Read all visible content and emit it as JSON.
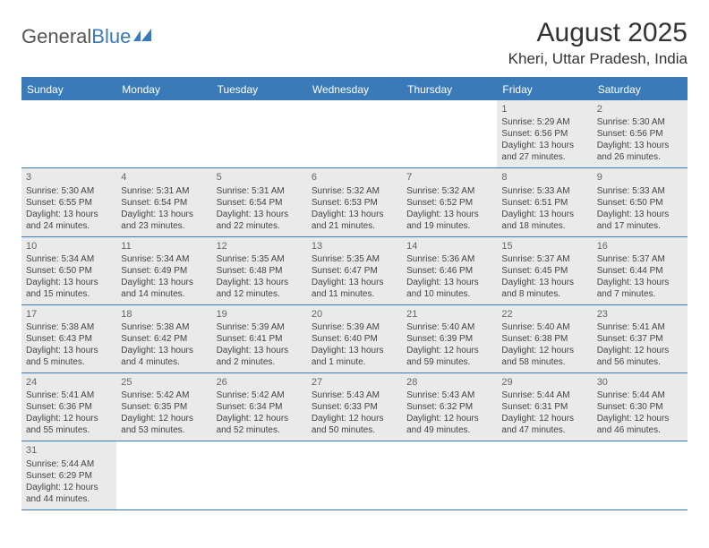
{
  "logo": {
    "text1": "General",
    "text2": "Blue"
  },
  "title": "August 2025",
  "subtitle": "Kheri, Uttar Pradesh, India",
  "colors": {
    "header_bg": "#3a7ab8",
    "header_text": "#ffffff",
    "cell_bg": "#eaeaea",
    "border": "#3a7ab8",
    "text": "#444444",
    "daynum": "#666666"
  },
  "day_headers": [
    "Sunday",
    "Monday",
    "Tuesday",
    "Wednesday",
    "Thursday",
    "Friday",
    "Saturday"
  ],
  "weeks": [
    [
      {
        "num": "",
        "sunrise": "",
        "sunset": "",
        "daylight": ""
      },
      {
        "num": "",
        "sunrise": "",
        "sunset": "",
        "daylight": ""
      },
      {
        "num": "",
        "sunrise": "",
        "sunset": "",
        "daylight": ""
      },
      {
        "num": "",
        "sunrise": "",
        "sunset": "",
        "daylight": ""
      },
      {
        "num": "",
        "sunrise": "",
        "sunset": "",
        "daylight": ""
      },
      {
        "num": "1",
        "sunrise": "Sunrise: 5:29 AM",
        "sunset": "Sunset: 6:56 PM",
        "daylight": "Daylight: 13 hours and 27 minutes."
      },
      {
        "num": "2",
        "sunrise": "Sunrise: 5:30 AM",
        "sunset": "Sunset: 6:56 PM",
        "daylight": "Daylight: 13 hours and 26 minutes."
      }
    ],
    [
      {
        "num": "3",
        "sunrise": "Sunrise: 5:30 AM",
        "sunset": "Sunset: 6:55 PM",
        "daylight": "Daylight: 13 hours and 24 minutes."
      },
      {
        "num": "4",
        "sunrise": "Sunrise: 5:31 AM",
        "sunset": "Sunset: 6:54 PM",
        "daylight": "Daylight: 13 hours and 23 minutes."
      },
      {
        "num": "5",
        "sunrise": "Sunrise: 5:31 AM",
        "sunset": "Sunset: 6:54 PM",
        "daylight": "Daylight: 13 hours and 22 minutes."
      },
      {
        "num": "6",
        "sunrise": "Sunrise: 5:32 AM",
        "sunset": "Sunset: 6:53 PM",
        "daylight": "Daylight: 13 hours and 21 minutes."
      },
      {
        "num": "7",
        "sunrise": "Sunrise: 5:32 AM",
        "sunset": "Sunset: 6:52 PM",
        "daylight": "Daylight: 13 hours and 19 minutes."
      },
      {
        "num": "8",
        "sunrise": "Sunrise: 5:33 AM",
        "sunset": "Sunset: 6:51 PM",
        "daylight": "Daylight: 13 hours and 18 minutes."
      },
      {
        "num": "9",
        "sunrise": "Sunrise: 5:33 AM",
        "sunset": "Sunset: 6:50 PM",
        "daylight": "Daylight: 13 hours and 17 minutes."
      }
    ],
    [
      {
        "num": "10",
        "sunrise": "Sunrise: 5:34 AM",
        "sunset": "Sunset: 6:50 PM",
        "daylight": "Daylight: 13 hours and 15 minutes."
      },
      {
        "num": "11",
        "sunrise": "Sunrise: 5:34 AM",
        "sunset": "Sunset: 6:49 PM",
        "daylight": "Daylight: 13 hours and 14 minutes."
      },
      {
        "num": "12",
        "sunrise": "Sunrise: 5:35 AM",
        "sunset": "Sunset: 6:48 PM",
        "daylight": "Daylight: 13 hours and 12 minutes."
      },
      {
        "num": "13",
        "sunrise": "Sunrise: 5:35 AM",
        "sunset": "Sunset: 6:47 PM",
        "daylight": "Daylight: 13 hours and 11 minutes."
      },
      {
        "num": "14",
        "sunrise": "Sunrise: 5:36 AM",
        "sunset": "Sunset: 6:46 PM",
        "daylight": "Daylight: 13 hours and 10 minutes."
      },
      {
        "num": "15",
        "sunrise": "Sunrise: 5:37 AM",
        "sunset": "Sunset: 6:45 PM",
        "daylight": "Daylight: 13 hours and 8 minutes."
      },
      {
        "num": "16",
        "sunrise": "Sunrise: 5:37 AM",
        "sunset": "Sunset: 6:44 PM",
        "daylight": "Daylight: 13 hours and 7 minutes."
      }
    ],
    [
      {
        "num": "17",
        "sunrise": "Sunrise: 5:38 AM",
        "sunset": "Sunset: 6:43 PM",
        "daylight": "Daylight: 13 hours and 5 minutes."
      },
      {
        "num": "18",
        "sunrise": "Sunrise: 5:38 AM",
        "sunset": "Sunset: 6:42 PM",
        "daylight": "Daylight: 13 hours and 4 minutes."
      },
      {
        "num": "19",
        "sunrise": "Sunrise: 5:39 AM",
        "sunset": "Sunset: 6:41 PM",
        "daylight": "Daylight: 13 hours and 2 minutes."
      },
      {
        "num": "20",
        "sunrise": "Sunrise: 5:39 AM",
        "sunset": "Sunset: 6:40 PM",
        "daylight": "Daylight: 13 hours and 1 minute."
      },
      {
        "num": "21",
        "sunrise": "Sunrise: 5:40 AM",
        "sunset": "Sunset: 6:39 PM",
        "daylight": "Daylight: 12 hours and 59 minutes."
      },
      {
        "num": "22",
        "sunrise": "Sunrise: 5:40 AM",
        "sunset": "Sunset: 6:38 PM",
        "daylight": "Daylight: 12 hours and 58 minutes."
      },
      {
        "num": "23",
        "sunrise": "Sunrise: 5:41 AM",
        "sunset": "Sunset: 6:37 PM",
        "daylight": "Daylight: 12 hours and 56 minutes."
      }
    ],
    [
      {
        "num": "24",
        "sunrise": "Sunrise: 5:41 AM",
        "sunset": "Sunset: 6:36 PM",
        "daylight": "Daylight: 12 hours and 55 minutes."
      },
      {
        "num": "25",
        "sunrise": "Sunrise: 5:42 AM",
        "sunset": "Sunset: 6:35 PM",
        "daylight": "Daylight: 12 hours and 53 minutes."
      },
      {
        "num": "26",
        "sunrise": "Sunrise: 5:42 AM",
        "sunset": "Sunset: 6:34 PM",
        "daylight": "Daylight: 12 hours and 52 minutes."
      },
      {
        "num": "27",
        "sunrise": "Sunrise: 5:43 AM",
        "sunset": "Sunset: 6:33 PM",
        "daylight": "Daylight: 12 hours and 50 minutes."
      },
      {
        "num": "28",
        "sunrise": "Sunrise: 5:43 AM",
        "sunset": "Sunset: 6:32 PM",
        "daylight": "Daylight: 12 hours and 49 minutes."
      },
      {
        "num": "29",
        "sunrise": "Sunrise: 5:44 AM",
        "sunset": "Sunset: 6:31 PM",
        "daylight": "Daylight: 12 hours and 47 minutes."
      },
      {
        "num": "30",
        "sunrise": "Sunrise: 5:44 AM",
        "sunset": "Sunset: 6:30 PM",
        "daylight": "Daylight: 12 hours and 46 minutes."
      }
    ],
    [
      {
        "num": "31",
        "sunrise": "Sunrise: 5:44 AM",
        "sunset": "Sunset: 6:29 PM",
        "daylight": "Daylight: 12 hours and 44 minutes."
      },
      {
        "num": "",
        "sunrise": "",
        "sunset": "",
        "daylight": ""
      },
      {
        "num": "",
        "sunrise": "",
        "sunset": "",
        "daylight": ""
      },
      {
        "num": "",
        "sunrise": "",
        "sunset": "",
        "daylight": ""
      },
      {
        "num": "",
        "sunrise": "",
        "sunset": "",
        "daylight": ""
      },
      {
        "num": "",
        "sunrise": "",
        "sunset": "",
        "daylight": ""
      },
      {
        "num": "",
        "sunrise": "",
        "sunset": "",
        "daylight": ""
      }
    ]
  ]
}
